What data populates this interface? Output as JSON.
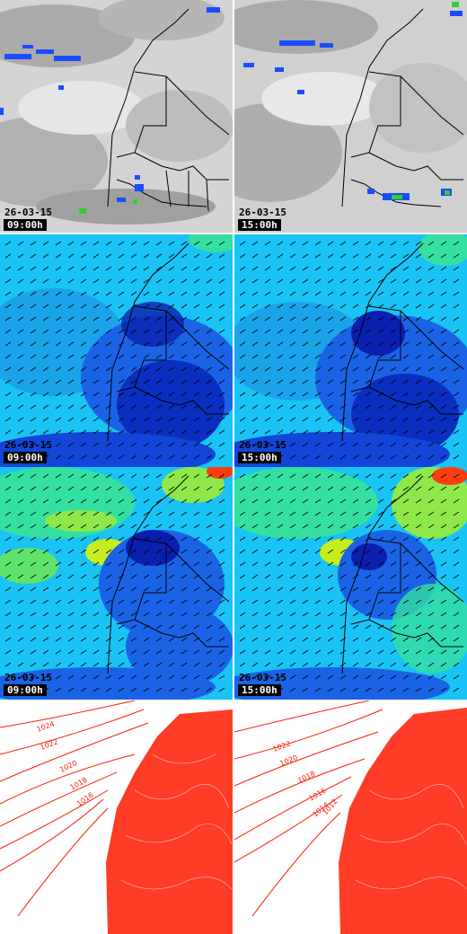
{
  "panels": [
    {
      "row": "satellite",
      "date": "26-03-15",
      "time": "09:00h"
    },
    {
      "row": "satellite",
      "date": "26-03-15",
      "time": "15:00h"
    },
    {
      "row": "dust-a",
      "date": "26-03-15",
      "time": "09:00h"
    },
    {
      "row": "dust-a",
      "date": "26-03-15",
      "time": "15:00h"
    },
    {
      "row": "dust-b",
      "date": "26-03-15",
      "time": "09:00h"
    },
    {
      "row": "dust-b",
      "date": "26-03-15",
      "time": "15:00h"
    },
    {
      "row": "pressure"
    },
    {
      "row": "pressure"
    }
  ],
  "isobar_labels": {
    "left": [
      "1024",
      "1022",
      "1020",
      "1018",
      "1016"
    ],
    "right": [
      "1022",
      "1020",
      "1018",
      "1016",
      "1014",
      "1012"
    ]
  },
  "colors": {
    "cloud": "#c8c8c8",
    "cloud_dark": "#8c8c8c",
    "precip": "#1a4dff",
    "precip_green": "#33cc33",
    "field_cyan": "#19c3f5",
    "field_blue": "#1a63e6",
    "field_dark": "#0a1fb0",
    "field_green": "#33e0a0",
    "field_yellow": "#c6ee1f",
    "field_red": "#ff3b10",
    "isobar": "#ff1a00",
    "border": "#000000"
  }
}
